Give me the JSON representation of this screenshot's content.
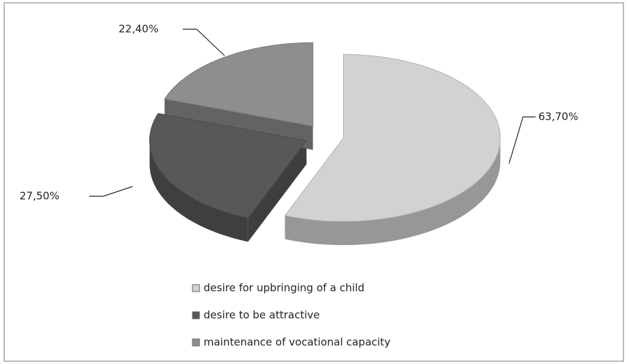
{
  "chart_data": {
    "type": "pie",
    "categories": [
      "desire for upbringing of a child",
      "desire to be attractive",
      "maintenance of vocational capacity"
    ],
    "values": [
      63.7,
      27.5,
      22.4
    ],
    "value_labels": [
      "63,70%",
      "27,50%",
      "22,40%"
    ],
    "colors": [
      "#d2d2d2",
      "#585858",
      "#8e8e8e"
    ],
    "legend": "bottom"
  }
}
